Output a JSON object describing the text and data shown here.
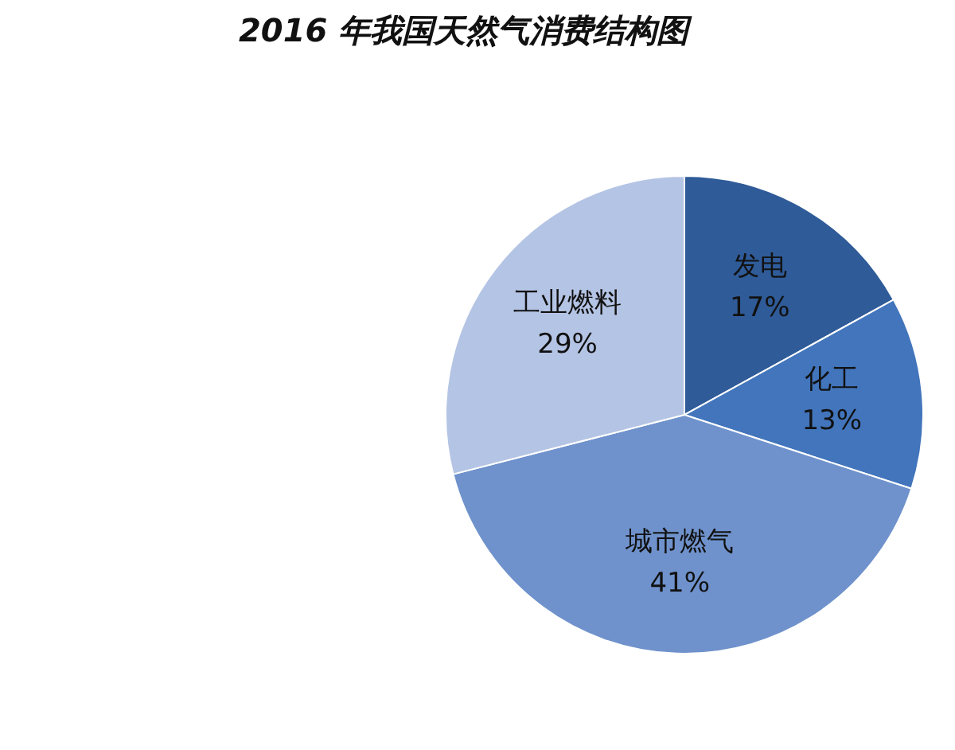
{
  "chart_data": {
    "type": "pie",
    "title": "2016 年我国天然气消费结构图",
    "categories": [
      "发电",
      "化工",
      "城市燃气",
      "工业燃料"
    ],
    "values": [
      17,
      13,
      41,
      29
    ],
    "value_labels": [
      "17%",
      "13%",
      "41%",
      "29%"
    ],
    "colors": [
      "#2f5b98",
      "#4275bb",
      "#6f92cc",
      "#b4c4e4"
    ],
    "legend": false
  }
}
